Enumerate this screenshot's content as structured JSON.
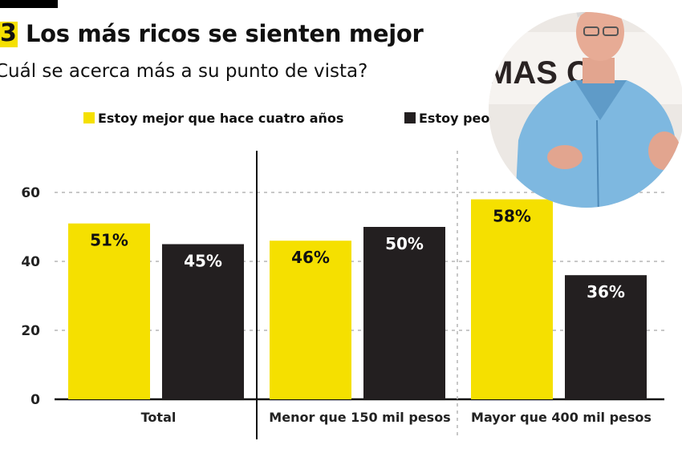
{
  "header": {
    "number": "3",
    "title": "Los más ricos se sienten mejor",
    "subtitle": "Cuál se acerca más a su punto de vista?"
  },
  "legend": [
    {
      "label": "Estoy mejor que hace cuatro años",
      "color": "#f5e000"
    },
    {
      "label": "Estoy peo",
      "color": "#231f20"
    }
  ],
  "colors": {
    "yellow": "#f5e000",
    "dark": "#231f20"
  },
  "photo": {
    "background_text": "MAS C"
  },
  "chart_data": {
    "type": "bar",
    "categories": [
      "Total",
      "Menor que 150 mil pesos",
      "Mayor que 400 mil pesos"
    ],
    "series": [
      {
        "name": "Estoy mejor que hace cuatro años",
        "values": [
          51,
          46,
          58
        ],
        "labels": [
          "51%",
          "46%",
          "58%"
        ],
        "color": "#f5e000"
      },
      {
        "name": "Estoy peo",
        "values": [
          45,
          50,
          36
        ],
        "labels": [
          "45%",
          "50%",
          "36%"
        ],
        "color": "#231f20"
      }
    ],
    "yticks": [
      "0",
      "20",
      "40",
      "60"
    ],
    "ylim": [
      0,
      60
    ],
    "grid": true,
    "legend_position": "top"
  }
}
